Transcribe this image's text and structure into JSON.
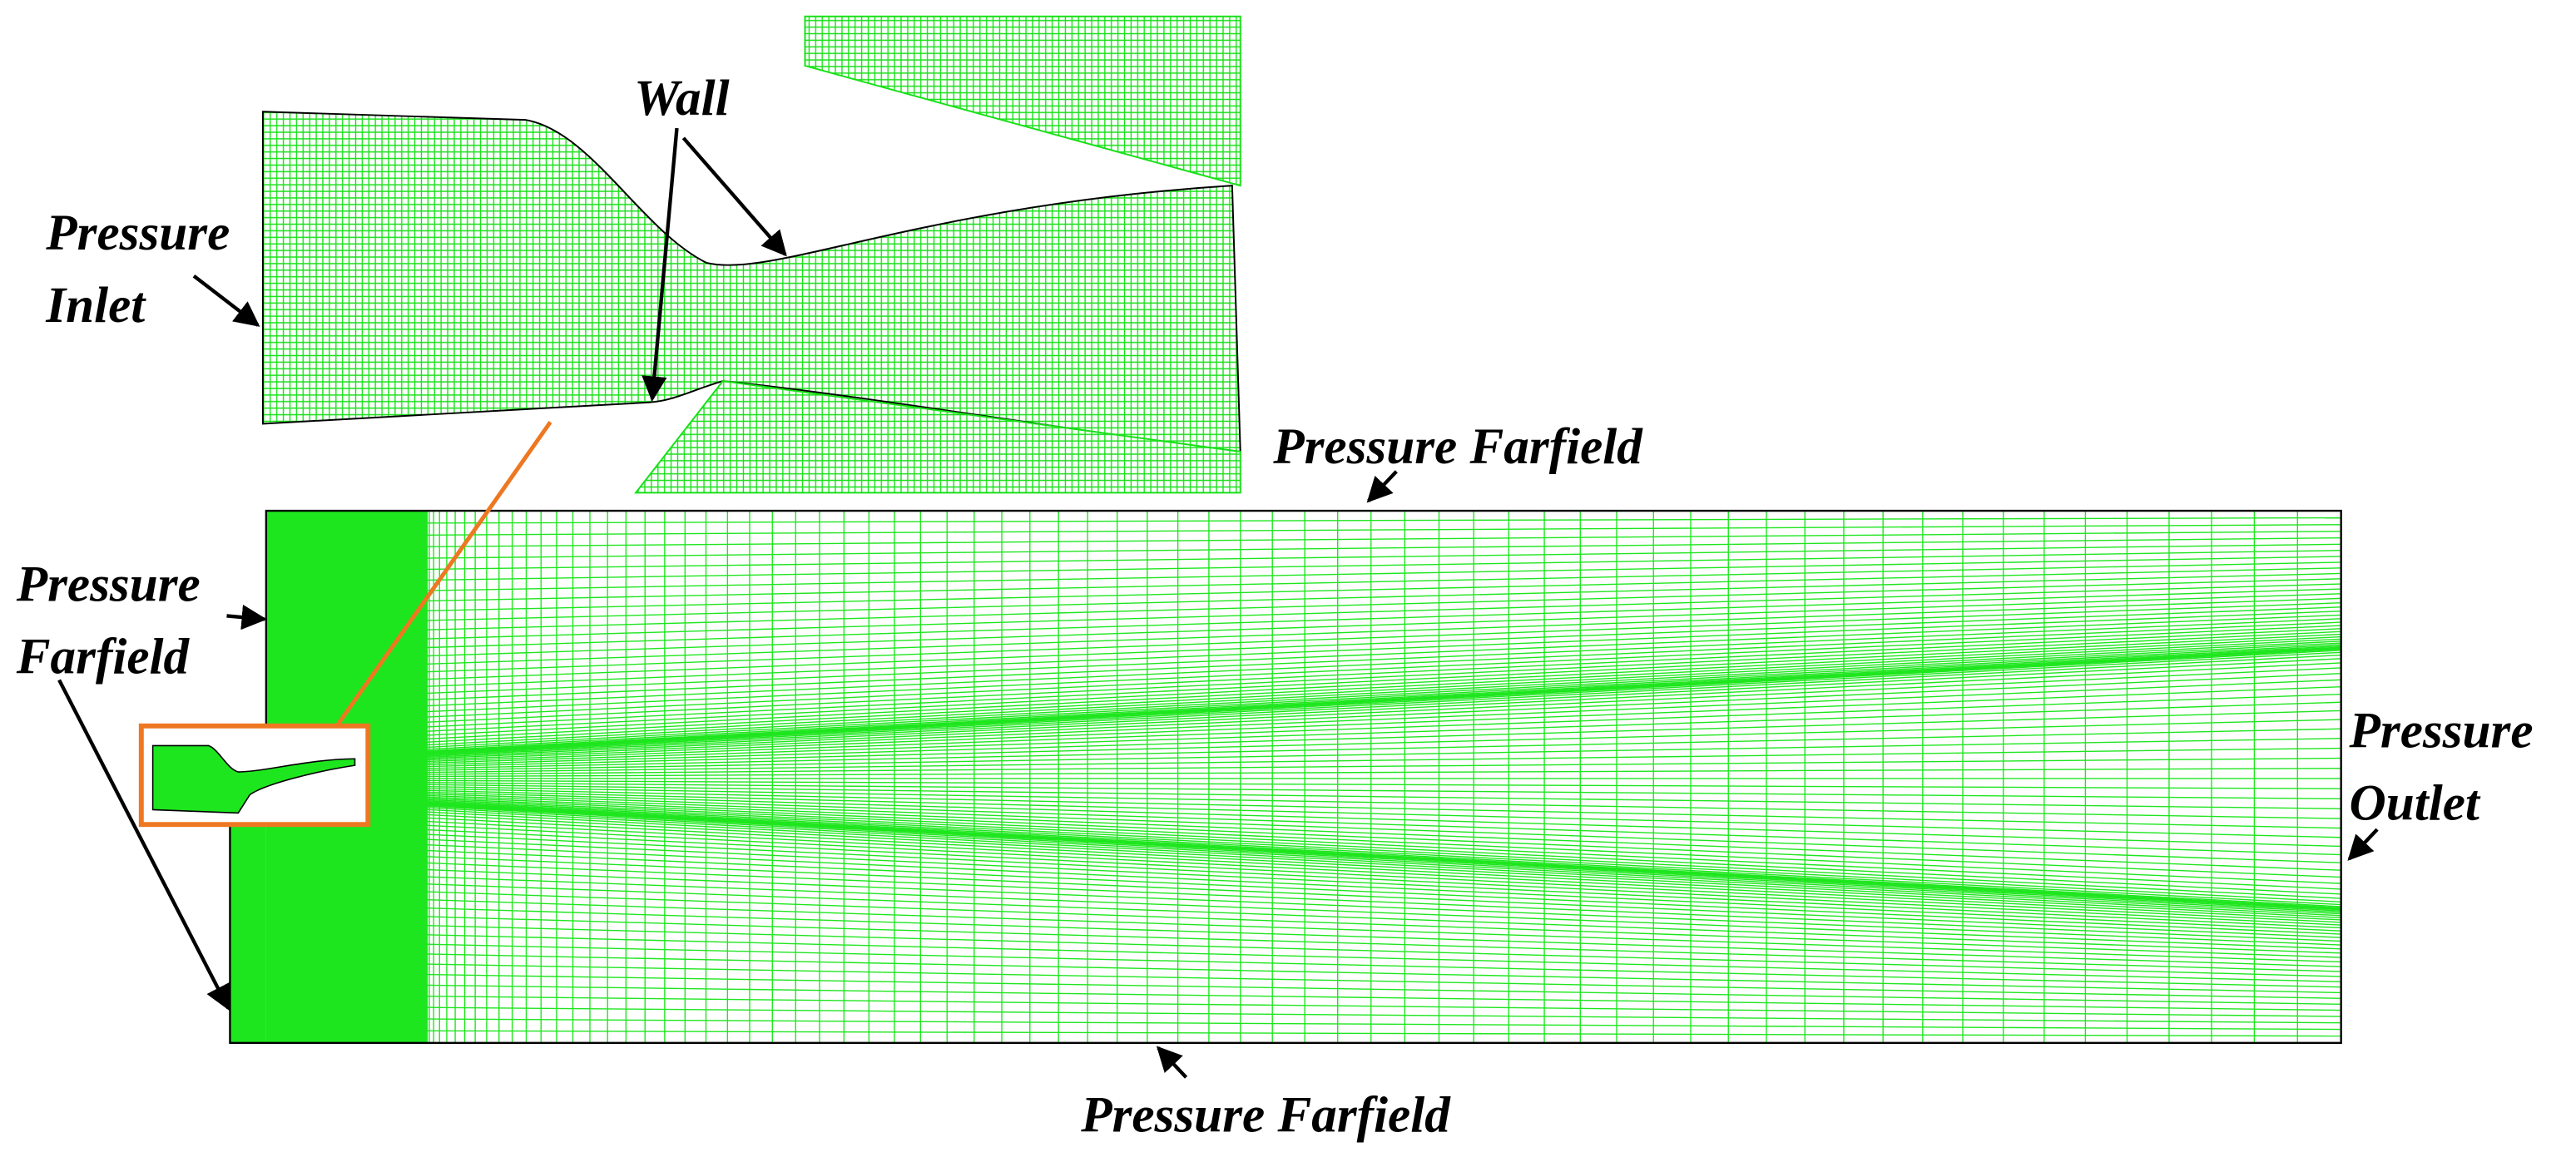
{
  "labels": {
    "wall": "Wall",
    "inlet": [
      "Pressure",
      "Inlet"
    ],
    "farfield_top": "Pressure Farfield",
    "farfield_left": [
      "Pressure",
      "Farfield"
    ],
    "farfield_bottom": "Pressure Farfield",
    "outlet": [
      "Pressure",
      "Outlet"
    ]
  }
}
